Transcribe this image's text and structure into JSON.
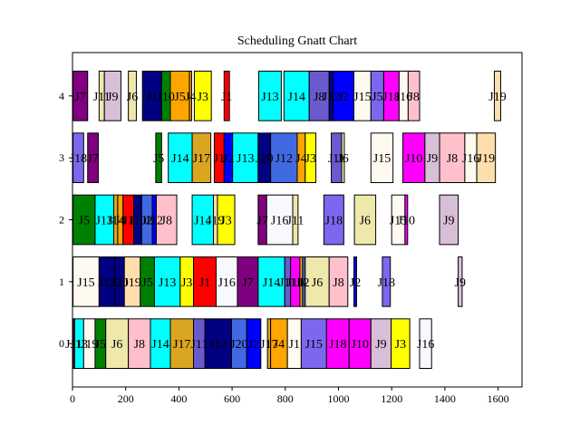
{
  "chart_data": {
    "type": "gantt",
    "title": "Scheduling Gnatt Chart",
    "xlabel": "",
    "ylabel": "",
    "xlim": [
      0,
      1690
    ],
    "ylim": [
      -0.7,
      4.7
    ],
    "xticks": [
      0,
      200,
      400,
      600,
      800,
      1000,
      1200,
      1400,
      1600
    ],
    "yticks": [
      0,
      1,
      2,
      3,
      4
    ],
    "grid": false,
    "tasks": [
      {
        "row": 4,
        "label": "J7",
        "start": 2,
        "end": 57,
        "color": "#800080"
      },
      {
        "row": 4,
        "label": "J11",
        "start": 100,
        "end": 120,
        "color": "#eee8aa"
      },
      {
        "row": 4,
        "label": "J9",
        "start": 120,
        "end": 182,
        "color": "#d8bfd8"
      },
      {
        "row": 4,
        "label": "J6",
        "start": 210,
        "end": 240,
        "color": "#eee8aa"
      },
      {
        "row": 4,
        "label": "J1",
        "start": 263,
        "end": 335,
        "color": "#000080"
      },
      {
        "row": 4,
        "label": "J10",
        "start": 335,
        "end": 368,
        "color": "#008000"
      },
      {
        "row": 4,
        "label": "J5",
        "start": 368,
        "end": 440,
        "color": "#ffa500"
      },
      {
        "row": 4,
        "label": "J4",
        "start": 440,
        "end": 448,
        "color": "#ffa500"
      },
      {
        "row": 4,
        "label": "J3",
        "start": 458,
        "end": 522,
        "color": "#ffff00"
      },
      {
        "row": 4,
        "label": "J1",
        "start": 570,
        "end": 590,
        "color": "#ff0000"
      },
      {
        "row": 4,
        "label": "J13",
        "start": 700,
        "end": 785,
        "color": "#00ffff"
      },
      {
        "row": 4,
        "label": "J14",
        "start": 795,
        "end": 890,
        "color": "#00ffff"
      },
      {
        "row": 4,
        "label": "J8",
        "start": 890,
        "end": 965,
        "color": "#6a5acd"
      },
      {
        "row": 4,
        "label": "J12",
        "start": 965,
        "end": 980,
        "color": "#00008b"
      },
      {
        "row": 4,
        "label": "J2",
        "start": 980,
        "end": 1058,
        "color": "#0000ff"
      },
      {
        "row": 4,
        "label": "J15",
        "start": 1058,
        "end": 1122,
        "color": "#fffaf0"
      },
      {
        "row": 4,
        "label": "J5",
        "start": 1122,
        "end": 1170,
        "color": "#7b68ee"
      },
      {
        "row": 4,
        "label": "J18",
        "start": 1170,
        "end": 1228,
        "color": "#ff00ff"
      },
      {
        "row": 4,
        "label": "J16",
        "start": 1228,
        "end": 1262,
        "color": "#fffaf0"
      },
      {
        "row": 4,
        "label": "J8",
        "start": 1262,
        "end": 1305,
        "color": "#ffc0cb"
      },
      {
        "row": 4,
        "label": "J19",
        "start": 1586,
        "end": 1610,
        "color": "#ffdead"
      },
      {
        "row": 3,
        "label": "J18",
        "start": 2,
        "end": 42,
        "color": "#7b68ee"
      },
      {
        "row": 3,
        "label": "J7",
        "start": 57,
        "end": 97,
        "color": "#800080"
      },
      {
        "row": 3,
        "label": "J5",
        "start": 313,
        "end": 335,
        "color": "#008000"
      },
      {
        "row": 3,
        "label": "J14",
        "start": 360,
        "end": 450,
        "color": "#00ffff"
      },
      {
        "row": 3,
        "label": "J17",
        "start": 450,
        "end": 520,
        "color": "#daa520"
      },
      {
        "row": 3,
        "label": "J1",
        "start": 533,
        "end": 570,
        "color": "#ff0000"
      },
      {
        "row": 3,
        "label": "J2",
        "start": 570,
        "end": 602,
        "color": "#0000ff"
      },
      {
        "row": 3,
        "label": "J13",
        "start": 602,
        "end": 698,
        "color": "#00ffff"
      },
      {
        "row": 3,
        "label": "J20",
        "start": 698,
        "end": 745,
        "color": "#000080"
      },
      {
        "row": 3,
        "label": "J12",
        "start": 745,
        "end": 845,
        "color": "#4169e1"
      },
      {
        "row": 3,
        "label": "J4",
        "start": 845,
        "end": 875,
        "color": "#ffa500"
      },
      {
        "row": 3,
        "label": "J3",
        "start": 875,
        "end": 915,
        "color": "#ffff00"
      },
      {
        "row": 3,
        "label": "J11",
        "start": 973,
        "end": 1012,
        "color": "#6a5acd"
      },
      {
        "row": 3,
        "label": "J6",
        "start": 1012,
        "end": 1022,
        "color": "#eee8aa"
      },
      {
        "row": 3,
        "label": "J15",
        "start": 1122,
        "end": 1205,
        "color": "#fffaf0"
      },
      {
        "row": 3,
        "label": "J10",
        "start": 1242,
        "end": 1325,
        "color": "#ff00ff"
      },
      {
        "row": 3,
        "label": "J9",
        "start": 1325,
        "end": 1380,
        "color": "#d8bfd8"
      },
      {
        "row": 3,
        "label": "J8",
        "start": 1380,
        "end": 1475,
        "color": "#ffc0cb"
      },
      {
        "row": 3,
        "label": "J16",
        "start": 1475,
        "end": 1520,
        "color": "#fffaf0"
      },
      {
        "row": 3,
        "label": "J19",
        "start": 1520,
        "end": 1590,
        "color": "#ffdead"
      },
      {
        "row": 2,
        "label": "J5",
        "start": 2,
        "end": 85,
        "color": "#008000"
      },
      {
        "row": 2,
        "label": "J13",
        "start": 85,
        "end": 155,
        "color": "#00ffff"
      },
      {
        "row": 2,
        "label": "J14",
        "start": 155,
        "end": 170,
        "color": "#daa520"
      },
      {
        "row": 2,
        "label": "J4",
        "start": 170,
        "end": 190,
        "color": "#ffa500"
      },
      {
        "row": 2,
        "label": "J1",
        "start": 190,
        "end": 230,
        "color": "#ff0000"
      },
      {
        "row": 2,
        "label": "J20",
        "start": 230,
        "end": 260,
        "color": "#000080"
      },
      {
        "row": 2,
        "label": "J2",
        "start": 260,
        "end": 300,
        "color": "#4169e1"
      },
      {
        "row": 2,
        "label": "J12",
        "start": 300,
        "end": 315,
        "color": "#0000ff"
      },
      {
        "row": 2,
        "label": "J8",
        "start": 315,
        "end": 392,
        "color": "#ffc0cb"
      },
      {
        "row": 2,
        "label": "J14",
        "start": 450,
        "end": 530,
        "color": "#00ffff"
      },
      {
        "row": 2,
        "label": "J19",
        "start": 530,
        "end": 545,
        "color": "#ffdead"
      },
      {
        "row": 2,
        "label": "J3",
        "start": 545,
        "end": 610,
        "color": "#ffff00"
      },
      {
        "row": 2,
        "label": "J7",
        "start": 698,
        "end": 730,
        "color": "#800080"
      },
      {
        "row": 2,
        "label": "J16",
        "start": 730,
        "end": 828,
        "color": "#f8f8ff"
      },
      {
        "row": 2,
        "label": "J11",
        "start": 828,
        "end": 848,
        "color": "#eee8aa"
      },
      {
        "row": 2,
        "label": "J18",
        "start": 945,
        "end": 1020,
        "color": "#7b68ee"
      },
      {
        "row": 2,
        "label": "J6",
        "start": 1060,
        "end": 1140,
        "color": "#eee8aa"
      },
      {
        "row": 2,
        "label": "J15",
        "start": 1200,
        "end": 1250,
        "color": "#fffaf0"
      },
      {
        "row": 2,
        "label": "J10",
        "start": 1250,
        "end": 1260,
        "color": "#ff00ff"
      },
      {
        "row": 2,
        "label": "J9",
        "start": 1380,
        "end": 1450,
        "color": "#d8bfd8"
      },
      {
        "row": 1,
        "label": "J15",
        "start": 2,
        "end": 100,
        "color": "#fffaf0"
      },
      {
        "row": 1,
        "label": "J12",
        "start": 100,
        "end": 160,
        "color": "#000080"
      },
      {
        "row": 1,
        "label": "J20",
        "start": 160,
        "end": 195,
        "color": "#000080"
      },
      {
        "row": 1,
        "label": "J19",
        "start": 195,
        "end": 255,
        "color": "#ffdead"
      },
      {
        "row": 1,
        "label": "J5",
        "start": 255,
        "end": 308,
        "color": "#008000"
      },
      {
        "row": 1,
        "label": "J13",
        "start": 308,
        "end": 405,
        "color": "#00ffff"
      },
      {
        "row": 1,
        "label": "J3",
        "start": 405,
        "end": 455,
        "color": "#ffff00"
      },
      {
        "row": 1,
        "label": "J1",
        "start": 455,
        "end": 540,
        "color": "#ff0000"
      },
      {
        "row": 1,
        "label": "J16",
        "start": 540,
        "end": 620,
        "color": "#f8f8ff"
      },
      {
        "row": 1,
        "label": "J7",
        "start": 620,
        "end": 698,
        "color": "#800080"
      },
      {
        "row": 1,
        "label": "J14",
        "start": 698,
        "end": 798,
        "color": "#00ffff"
      },
      {
        "row": 1,
        "label": "J11",
        "start": 798,
        "end": 820,
        "color": "#6a5acd"
      },
      {
        "row": 1,
        "label": "J10",
        "start": 820,
        "end": 855,
        "color": "#ff00ff"
      },
      {
        "row": 1,
        "label": "J4",
        "start": 855,
        "end": 865,
        "color": "#ffa500"
      },
      {
        "row": 1,
        "label": "J2",
        "start": 865,
        "end": 875,
        "color": "#4169e1"
      },
      {
        "row": 1,
        "label": "J6",
        "start": 875,
        "end": 965,
        "color": "#eee8aa"
      },
      {
        "row": 1,
        "label": "J8",
        "start": 965,
        "end": 1035,
        "color": "#ffc0cb"
      },
      {
        "row": 1,
        "label": "J2",
        "start": 1058,
        "end": 1068,
        "color": "#0000ff"
      },
      {
        "row": 1,
        "label": "J18",
        "start": 1165,
        "end": 1195,
        "color": "#7b68ee"
      },
      {
        "row": 1,
        "label": "J9",
        "start": 1450,
        "end": 1465,
        "color": "#d8bfd8"
      },
      {
        "row": 0,
        "label": "J11",
        "start": 2,
        "end": 8,
        "color": "#8b0000"
      },
      {
        "row": 0,
        "label": "J13",
        "start": 8,
        "end": 42,
        "color": "#00ffff"
      },
      {
        "row": 0,
        "label": "J19",
        "start": 42,
        "end": 85,
        "color": "#fffaf0"
      },
      {
        "row": 0,
        "label": "J5",
        "start": 85,
        "end": 125,
        "color": "#008000"
      },
      {
        "row": 0,
        "label": "J6",
        "start": 125,
        "end": 210,
        "color": "#eee8aa"
      },
      {
        "row": 0,
        "label": "J8",
        "start": 210,
        "end": 293,
        "color": "#ffc0cb"
      },
      {
        "row": 0,
        "label": "J14",
        "start": 293,
        "end": 368,
        "color": "#00ffff"
      },
      {
        "row": 0,
        "label": "J17",
        "start": 368,
        "end": 455,
        "color": "#daa520"
      },
      {
        "row": 0,
        "label": "J11",
        "start": 455,
        "end": 498,
        "color": "#6a5acd"
      },
      {
        "row": 0,
        "label": "J12",
        "start": 498,
        "end": 598,
        "color": "#000080"
      },
      {
        "row": 0,
        "label": "J20",
        "start": 598,
        "end": 655,
        "color": "#4169e1"
      },
      {
        "row": 0,
        "label": "J2",
        "start": 655,
        "end": 708,
        "color": "#0000ff"
      },
      {
        "row": 0,
        "label": "J17",
        "start": 733,
        "end": 745,
        "color": "#daa520"
      },
      {
        "row": 0,
        "label": "J4",
        "start": 745,
        "end": 808,
        "color": "#ffa500"
      },
      {
        "row": 0,
        "label": "J1",
        "start": 808,
        "end": 860,
        "color": "#fffaf0"
      },
      {
        "row": 0,
        "label": "J15",
        "start": 860,
        "end": 955,
        "color": "#7b68ee"
      },
      {
        "row": 0,
        "label": "J18",
        "start": 955,
        "end": 1040,
        "color": "#ff00ff"
      },
      {
        "row": 0,
        "label": "J10",
        "start": 1040,
        "end": 1122,
        "color": "#ff00ff"
      },
      {
        "row": 0,
        "label": "J9",
        "start": 1122,
        "end": 1198,
        "color": "#d8bfd8"
      },
      {
        "row": 0,
        "label": "J3",
        "start": 1198,
        "end": 1268,
        "color": "#ffff00"
      },
      {
        "row": 0,
        "label": "J16",
        "start": 1305,
        "end": 1350,
        "color": "#f8f8ff"
      }
    ]
  }
}
